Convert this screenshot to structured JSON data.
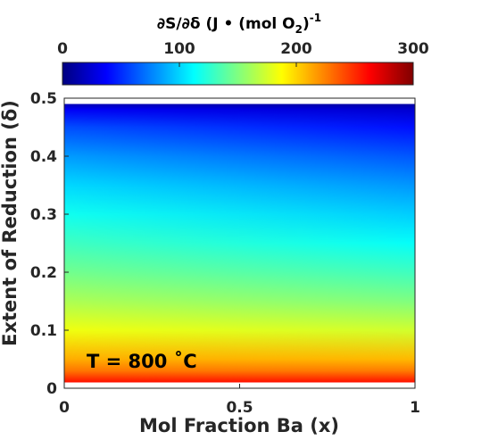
{
  "chart_data": {
    "type": "heatmap",
    "annotation": "T = 800 ˚C",
    "xlabel": "Mol Fraction Ba (x)",
    "ylabel": "Extent of Reduction (δ)",
    "xlim": [
      0,
      1
    ],
    "ylim": [
      0,
      0.5
    ],
    "xticks": [
      0,
      0.5,
      1
    ],
    "xtick_labels": [
      "0",
      "0.5",
      "1"
    ],
    "yticks": [
      0,
      0.1,
      0.2,
      0.3,
      0.4,
      0.5
    ],
    "ytick_labels": [
      "0",
      "0.1",
      "0.2",
      "0.3",
      "0.4",
      "0.5"
    ],
    "data_extent": {
      "delta_min": 0.01,
      "delta_max": 0.49
    },
    "colorbar": {
      "colormap": "jet",
      "label_parts": [
        "∂S/∂δ (J • (mol O",
        "2",
        ")",
        "-1"
      ],
      "range": [
        0,
        300
      ],
      "ticks": [
        0,
        100,
        200,
        300
      ],
      "tick_labels": [
        "0",
        "100",
        "200",
        "300"
      ],
      "placement": "top"
    },
    "values": {
      "description_units": "J/(mol O2)",
      "delta": [
        0.01,
        0.03,
        0.05,
        0.1,
        0.15,
        0.2,
        0.25,
        0.3,
        0.35,
        0.4,
        0.45,
        0.48,
        0.49
      ],
      "at_x0": [
        258,
        228,
        212,
        183,
        163,
        146,
        131,
        117,
        101,
        83,
        60,
        35,
        15
      ],
      "at_x1": [
        258,
        226,
        208,
        174,
        150,
        131,
        114,
        98,
        82,
        63,
        42,
        24,
        10
      ]
    }
  }
}
